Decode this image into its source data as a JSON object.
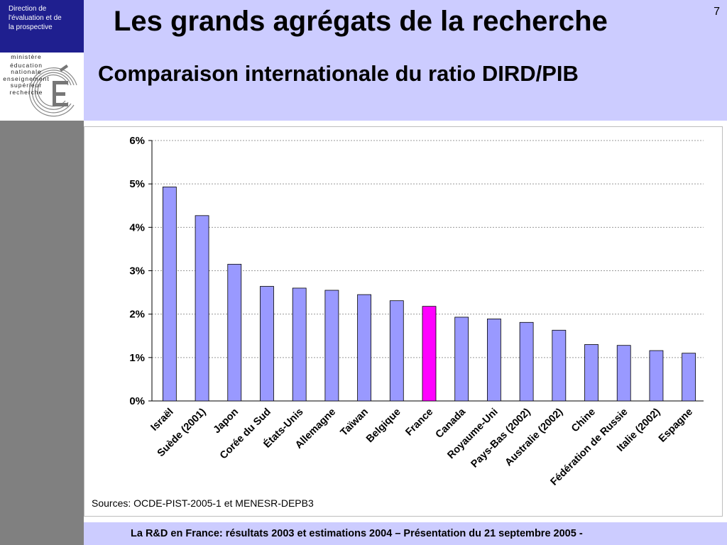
{
  "sidebar": {
    "direction_lines": [
      "Direction de",
      "l'évaluation  et de",
      "la prospective"
    ],
    "ministry_lines": [
      "ministère",
      "éducation",
      "nationale",
      "enseignement",
      "supérieur",
      "recherche"
    ],
    "colors": {
      "strip": "#808080",
      "box": "#1f1f8f"
    }
  },
  "header": {
    "title": "Les grands agrégats de la recherche",
    "subtitle": "Comparaison internationale du ratio DIRD/PIB",
    "page_number": "7",
    "background": "#ccccff"
  },
  "chart_data": {
    "type": "bar",
    "categories": [
      "Israël",
      "Suède (2001)",
      "Japon",
      "Corée du Sud",
      "États-Unis",
      "Allemagne",
      "Taïwan",
      "Belgique",
      "France",
      "Canada",
      "Royaume-Uni",
      "Pays-Bas (2002)",
      "Australie (2002)",
      "Chine",
      "Fédération de Russie",
      "Italie (2002)",
      "Espagne"
    ],
    "values": [
      4.93,
      4.27,
      3.15,
      2.64,
      2.6,
      2.55,
      2.45,
      2.31,
      2.18,
      1.93,
      1.89,
      1.81,
      1.63,
      1.3,
      1.28,
      1.16,
      1.1
    ],
    "ylim": [
      0,
      6
    ],
    "y_ticks": [
      "0%",
      "1%",
      "2%",
      "3%",
      "4%",
      "5%",
      "6%"
    ],
    "grid": true,
    "bar_color": "#9999ff",
    "highlight_color": "#ff00ff",
    "highlight_category": "France",
    "sources": "Sources: OCDE-PIST-2005-1 et MENESR-DEPB3"
  },
  "footer": {
    "text": "La R&D en France: résultats 2003 et estimations 2004 – Présentation du 21 septembre 2005 -"
  }
}
